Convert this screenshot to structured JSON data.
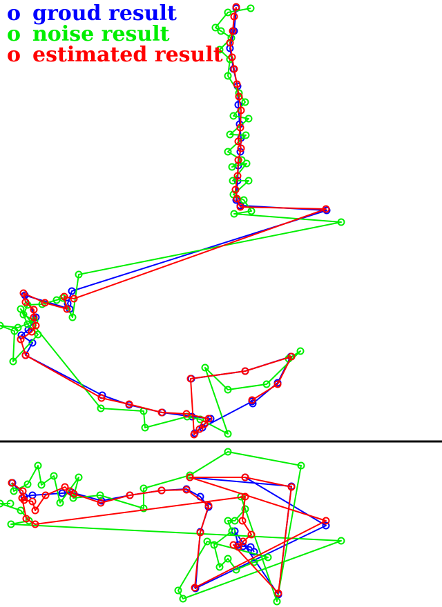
{
  "chart_data": {
    "type": "scatter",
    "title": "",
    "xlabel": "",
    "ylabel": "",
    "grid": false,
    "legend_position": "top-left",
    "colors": {
      "ground": "#0000ff",
      "noise": "#00ee00",
      "estimated": "#ff0000",
      "divider": "#000000"
    },
    "panels": [
      {
        "name": "",
        "series": [
          {
            "name": "groud result",
            "color": "#0000ff",
            "points": [
              [
                342,
                12
              ],
              [
                339,
                45
              ],
              [
                333,
                70
              ],
              [
                338,
                100
              ],
              [
                344,
                125
              ],
              [
                345,
                152
              ],
              [
                347,
                180
              ],
              [
                349,
                200
              ],
              [
                348,
                220
              ],
              [
                345,
                240
              ],
              [
                344,
                262
              ],
              [
                342,
                290
              ],
              [
                348,
                298
              ],
              [
                473,
                305
              ],
              [
                104,
                422
              ],
              [
                98,
                440
              ],
              [
                101,
                448
              ],
              [
                36,
                428
              ],
              [
                52,
                460
              ],
              [
                41,
                478
              ],
              [
                31,
                486
              ],
              [
                47,
                497
              ],
              [
                37,
                515
              ],
              [
                148,
                573
              ],
              [
                187,
                587
              ],
              [
                235,
                598
              ],
              [
                278,
                604
              ],
              [
                305,
                607
              ],
              [
                282,
                628
              ],
              [
                293,
                620
              ],
              [
                365,
                582
              ],
              [
                366,
                585
              ],
              [
                402,
                555
              ],
              [
                421,
                517
              ],
              [
                355,
                538
              ],
              [
                277,
                549
              ]
            ]
          },
          {
            "name": "noise result",
            "color": "#00ee00",
            "points": [
              [
                363,
                12
              ],
              [
                330,
                18
              ],
              [
                312,
                40
              ],
              [
                320,
                45
              ],
              [
                335,
                55
              ],
              [
                318,
                72
              ],
              [
                333,
                86
              ],
              [
                330,
                110
              ],
              [
                346,
                135
              ],
              [
                355,
                148
              ],
              [
                338,
                168
              ],
              [
                360,
                172
              ],
              [
                333,
                195
              ],
              [
                356,
                196
              ],
              [
                330,
                220
              ],
              [
                350,
                232
              ],
              [
                336,
                242
              ],
              [
                357,
                237
              ],
              [
                337,
                262
              ],
              [
                360,
                262
              ],
              [
                338,
                282
              ],
              [
                353,
                290
              ],
              [
                364,
                306
              ],
              [
                339,
                310
              ],
              [
                494,
                322
              ],
              [
                114,
                398
              ],
              [
                105,
                460
              ],
              [
                91,
                432
              ],
              [
                82,
                435
              ],
              [
                61,
                441
              ],
              [
                40,
                442
              ],
              [
                34,
                456
              ],
              [
                50,
                465
              ],
              [
                26,
                475
              ],
              [
                0,
                472
              ],
              [
                21,
                480
              ],
              [
                19,
                524
              ],
              [
                55,
                485
              ],
              [
                40,
                470
              ],
              [
                30,
                448
              ],
              [
                146,
                592
              ],
              [
                208,
                596
              ],
              [
                210,
                620
              ],
              [
                271,
                604
              ],
              [
                290,
                608
              ],
              [
                330,
                629
              ],
              [
                297,
                533
              ],
              [
                330,
                565
              ],
              [
                386,
                557
              ],
              [
                435,
                509
              ],
              [
                418,
                520
              ]
            ]
          },
          {
            "name": "estimated result",
            "color": "#ff0000",
            "points": [
              [
                342,
                10
              ],
              [
                339,
                24
              ],
              [
                337,
                45
              ],
              [
                333,
                62
              ],
              [
                336,
                83
              ],
              [
                339,
                100
              ],
              [
                343,
                122
              ],
              [
                346,
                140
              ],
              [
                349,
                160
              ],
              [
                348,
                185
              ],
              [
                345,
                205
              ],
              [
                349,
                215
              ],
              [
                345,
                232
              ],
              [
                344,
                255
              ],
              [
                341,
                275
              ],
              [
                343,
                288
              ],
              [
                348,
                300
              ],
              [
                472,
                303
              ],
              [
                107,
                433
              ],
              [
                93,
                430
              ],
              [
                97,
                448
              ],
              [
                65,
                439
              ],
              [
                34,
                425
              ],
              [
                37,
                438
              ],
              [
                49,
                449
              ],
              [
                49,
                460
              ],
              [
                52,
                472
              ],
              [
                46,
                481
              ],
              [
                30,
                492
              ],
              [
                37,
                515
              ],
              [
                147,
                577
              ],
              [
                187,
                586
              ],
              [
                234,
                598
              ],
              [
                270,
                600
              ],
              [
                302,
                607
              ],
              [
                296,
                615
              ],
              [
                289,
                622
              ],
              [
                281,
                630
              ],
              [
                276,
                549
              ],
              [
                355,
                538
              ],
              [
                422,
                517
              ],
              [
                402,
                557
              ],
              [
                365,
                580
              ]
            ]
          }
        ]
      },
      {
        "name": "",
        "series": [
          {
            "name": "groud result",
            "color": "#0000ff",
            "points": [
              [
                18,
                700
              ],
              [
                35,
                720
              ],
              [
                47,
                718
              ],
              [
                90,
                715
              ],
              [
                104,
                714
              ],
              [
                147,
                726
              ],
              [
                188,
                718
              ],
              [
                234,
                711
              ],
              [
                270,
                709
              ],
              [
                290,
                720
              ],
              [
                302,
                735
              ],
              [
                290,
                771
              ],
              [
                283,
                853
              ],
              [
                472,
                762
              ],
              [
                355,
                692
              ],
              [
                275,
                692
              ],
              [
                422,
                705
              ],
              [
                403,
                862
              ],
              [
                340,
                770
              ],
              [
                345,
                790
              ],
              [
                352,
                792
              ],
              [
                363,
                793
              ],
              [
                368,
                800
              ]
            ]
          },
          {
            "name": "noise result",
            "color": "#00ee00",
            "points": [
              [
                17,
                700
              ],
              [
                20,
                712
              ],
              [
                40,
                702
              ],
              [
                55,
                675
              ],
              [
                60,
                703
              ],
              [
                78,
                690
              ],
              [
                87,
                729
              ],
              [
                114,
                692
              ],
              [
                106,
                722
              ],
              [
                145,
                718
              ],
              [
                208,
                737
              ],
              [
                208,
                708
              ],
              [
                275,
                689
              ],
              [
                330,
                655
              ],
              [
                436,
                675
              ],
              [
                401,
                872
              ],
              [
                349,
                720
              ],
              [
                355,
                738
              ],
              [
                340,
                755
              ],
              [
                330,
                755
              ],
              [
                336,
                770
              ],
              [
                310,
                790
              ],
              [
                318,
                822
              ],
              [
                330,
                810
              ],
              [
                342,
                826
              ],
              [
                368,
                815
              ],
              [
                388,
                808
              ],
              [
                300,
                785
              ],
              [
                258,
                856
              ],
              [
                265,
                868
              ],
              [
                494,
                784
              ],
              [
                16,
                760
              ],
              [
                42,
                755
              ],
              [
                30,
                740
              ],
              [
                0,
                730
              ],
              [
                15,
                730
              ]
            ]
          },
          {
            "name": "estimated result",
            "color": "#ff0000",
            "points": [
              [
                17,
                700
              ],
              [
                33,
                712
              ],
              [
                35,
                725
              ],
              [
                47,
                727
              ],
              [
                51,
                740
              ],
              [
                66,
                718
              ],
              [
                94,
                706
              ],
              [
                101,
                712
              ],
              [
                107,
                716
              ],
              [
                146,
                729
              ],
              [
                188,
                718
              ],
              [
                234,
                711
              ],
              [
                270,
                710
              ],
              [
                302,
                733
              ],
              [
                290,
                772
              ],
              [
                282,
                852
              ],
              [
                472,
                755
              ],
              [
                275,
                692
              ],
              [
                355,
                692
              ],
              [
                422,
                706
              ],
              [
                403,
                860
              ],
              [
                338,
                790
              ],
              [
                345,
                793
              ],
              [
                352,
                785
              ],
              [
                364,
                775
              ],
              [
                351,
                755
              ],
              [
                355,
                720
              ],
              [
                51,
                760
              ],
              [
                38,
                752
              ],
              [
                32,
                722
              ]
            ]
          }
        ]
      }
    ]
  },
  "legend": {
    "items": [
      {
        "marker": "o",
        "label": "groud result",
        "color": "#0000ff"
      },
      {
        "marker": "o",
        "label": "noise result",
        "color": "#00ee00"
      },
      {
        "marker": "o",
        "label": "estimated result",
        "color": "#ff0000"
      }
    ]
  }
}
